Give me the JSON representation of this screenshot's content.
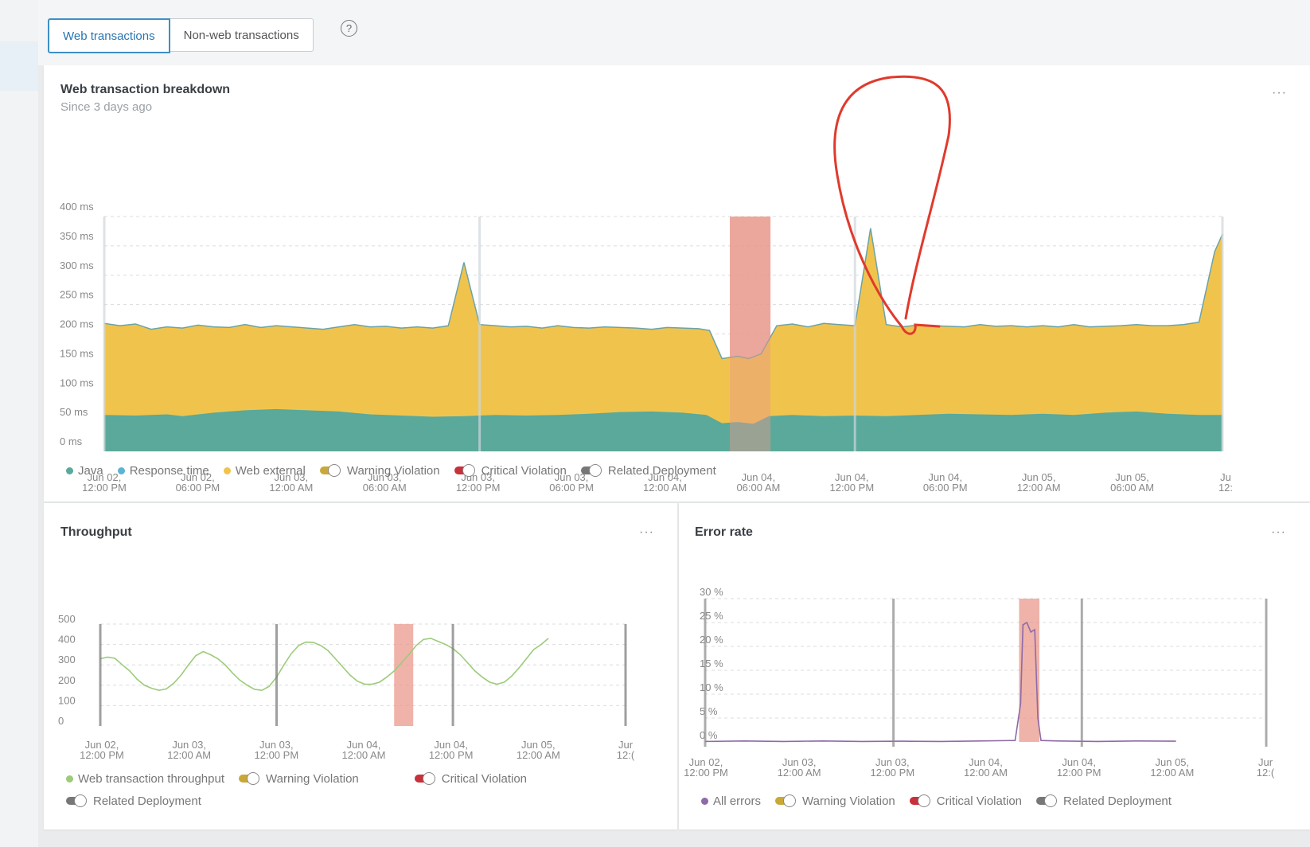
{
  "tabs": {
    "web": "Web transactions",
    "nonweb": "Non-web transactions",
    "help_icon": "question-circle-icon"
  },
  "breakdown": {
    "title": "Web transaction breakdown",
    "subtitle": "Since 3 days ago",
    "more": "···",
    "legend": {
      "java": "Java",
      "response_time": "Response time",
      "web_external": "Web external",
      "warning": "Warning Violation",
      "critical": "Critical Violation",
      "deployment": "Related Deployment"
    }
  },
  "throughput": {
    "title": "Throughput",
    "more": "···",
    "legend": {
      "series": "Web transaction throughput",
      "warning": "Warning Violation",
      "critical": "Critical Violation",
      "deployment": "Related Deployment"
    }
  },
  "error_rate": {
    "title": "Error rate",
    "more": "···",
    "legend": {
      "series": "All errors",
      "warning": "Warning Violation",
      "critical": "Critical Violation",
      "deployment": "Related Deployment"
    }
  },
  "colors": {
    "java": "#5aa99a",
    "web_external": "#f0c44c",
    "response_time": "#5ab4d6",
    "throughput": "#9ccb7a",
    "errors": "#8e6aa8",
    "violation": "#e99a8c",
    "warning": "#c9a838",
    "critical": "#c8303a",
    "deployment": "#777777",
    "annotation": "#e03a2c"
  },
  "chart_data": [
    {
      "type": "area",
      "title": "Web transaction breakdown",
      "ylim": [
        0,
        400
      ],
      "yticks": [
        "0 ms",
        "50 ms",
        "100 ms",
        "150 ms",
        "200 ms",
        "250 ms",
        "300 ms",
        "350 ms",
        "400 ms"
      ],
      "xticks": [
        [
          "Jun 02,",
          "12:00 PM"
        ],
        [
          "Jun 02,",
          "06:00 PM"
        ],
        [
          "Jun 03,",
          "12:00 AM"
        ],
        [
          "Jun 03,",
          "06:00 AM"
        ],
        [
          "Jun 03,",
          "12:00 PM"
        ],
        [
          "Jun 03,",
          "06:00 PM"
        ],
        [
          "Jun 04,",
          "12:00 AM"
        ],
        [
          "Jun 04,",
          "06:00 AM"
        ],
        [
          "Jun 04,",
          "12:00 PM"
        ],
        [
          "Jun 04,",
          "06:00 PM"
        ],
        [
          "Jun 05,",
          "12:00 AM"
        ],
        [
          "Jun 05,",
          "06:00 AM"
        ],
        [
          "Ju",
          "12:"
        ]
      ],
      "x_hours_range": [
        0,
        71.5
      ],
      "series": [
        {
          "name": "Java",
          "values": [
            [
              0,
              62
            ],
            [
              2,
              61
            ],
            [
              4,
              63
            ],
            [
              5,
              60
            ],
            [
              7,
              66
            ],
            [
              9,
              70
            ],
            [
              11,
              72
            ],
            [
              13,
              70
            ],
            [
              15,
              68
            ],
            [
              17,
              63
            ],
            [
              19,
              61
            ],
            [
              21,
              59
            ],
            [
              23,
              60
            ],
            [
              25,
              62
            ],
            [
              27,
              61
            ],
            [
              29,
              62
            ],
            [
              31,
              64
            ],
            [
              33,
              67
            ],
            [
              35,
              68
            ],
            [
              37,
              66
            ],
            [
              38.5,
              62
            ],
            [
              39.5,
              48
            ],
            [
              40.5,
              50
            ],
            [
              41.5,
              47
            ],
            [
              42.5,
              60
            ],
            [
              44,
              62
            ],
            [
              46,
              60
            ],
            [
              48,
              61
            ],
            [
              50,
              60
            ],
            [
              52,
              62
            ],
            [
              54,
              64
            ],
            [
              56,
              63
            ],
            [
              58,
              62
            ],
            [
              60,
              64
            ],
            [
              62,
              62
            ],
            [
              64,
              66
            ],
            [
              66,
              68
            ],
            [
              68,
              64
            ],
            [
              70,
              62
            ],
            [
              71.5,
              62
            ]
          ]
        },
        {
          "name": "Web external",
          "values": [
            [
              0,
              218
            ],
            [
              1,
              214
            ],
            [
              2,
              217
            ],
            [
              3,
              208
            ],
            [
              4,
              212
            ],
            [
              5,
              210
            ],
            [
              6,
              215
            ],
            [
              7,
              212
            ],
            [
              8,
              211
            ],
            [
              9,
              216
            ],
            [
              10,
              211
            ],
            [
              11,
              214
            ],
            [
              12,
              212
            ],
            [
              13,
              210
            ],
            [
              14,
              208
            ],
            [
              15,
              212
            ],
            [
              16,
              216
            ],
            [
              17,
              212
            ],
            [
              18,
              213
            ],
            [
              19,
              210
            ],
            [
              20,
              212
            ],
            [
              21,
              210
            ],
            [
              22,
              214
            ],
            [
              23,
              322
            ],
            [
              24,
              216
            ],
            [
              25,
              214
            ],
            [
              26,
              212
            ],
            [
              27,
              213
            ],
            [
              28,
              210
            ],
            [
              29,
              214
            ],
            [
              30,
              211
            ],
            [
              31,
              210
            ],
            [
              32,
              212
            ],
            [
              33,
              211
            ],
            [
              34,
              210
            ],
            [
              35,
              208
            ],
            [
              36,
              211
            ],
            [
              37,
              210
            ],
            [
              38,
              209
            ],
            [
              38.7,
              206
            ],
            [
              39.5,
              158
            ],
            [
              40.5,
              162
            ],
            [
              41.2,
              158
            ],
            [
              42,
              166
            ],
            [
              43,
              214
            ],
            [
              44,
              217
            ],
            [
              45,
              212
            ],
            [
              46,
              218
            ],
            [
              47,
              216
            ],
            [
              48,
              214
            ],
            [
              49,
              380
            ],
            [
              50,
              216
            ],
            [
              51,
              212
            ],
            [
              52,
              215
            ],
            [
              53,
              214
            ],
            [
              54,
              213
            ],
            [
              55,
              212
            ],
            [
              56,
              216
            ],
            [
              57,
              213
            ],
            [
              58,
              214
            ],
            [
              59,
              212
            ],
            [
              60,
              214
            ],
            [
              61,
              212
            ],
            [
              62,
              216
            ],
            [
              63,
              212
            ],
            [
              64,
              213
            ],
            [
              65,
              214
            ],
            [
              66,
              216
            ],
            [
              67,
              214
            ],
            [
              68,
              214
            ],
            [
              69,
              216
            ],
            [
              70,
              220
            ],
            [
              71,
              340
            ],
            [
              71.5,
              370
            ]
          ]
        }
      ],
      "violation": {
        "start_hour": 40,
        "end_hour": 42.6
      },
      "deployments_hours": [
        0,
        24,
        48,
        71.5
      ]
    },
    {
      "type": "line",
      "title": "Throughput",
      "ylim": [
        0,
        500
      ],
      "yticks": [
        "0",
        "100",
        "200",
        "300",
        "400",
        "500"
      ],
      "xticks": [
        [
          "Jun 02,",
          "12:00 PM"
        ],
        [
          "Jun 03,",
          "12:00 AM"
        ],
        [
          "Jun 03,",
          "12:00 PM"
        ],
        [
          "Jun 04,",
          "12:00 AM"
        ],
        [
          "Jun 04,",
          "12:00 PM"
        ],
        [
          "Jun 05,",
          "12:00 AM"
        ],
        [
          "Jur",
          "12:("
        ]
      ],
      "x_hours_range": [
        0,
        71.5
      ],
      "series": [
        {
          "name": "Web transaction throughput",
          "values": [
            [
              0,
              330
            ],
            [
              1,
              338
            ],
            [
              2,
              332
            ],
            [
              3,
              300
            ],
            [
              4,
              270
            ],
            [
              5,
              230
            ],
            [
              6,
              200
            ],
            [
              7,
              185
            ],
            [
              8,
              175
            ],
            [
              9,
              182
            ],
            [
              10,
              210
            ],
            [
              11,
              250
            ],
            [
              12,
              300
            ],
            [
              13,
              345
            ],
            [
              14,
              365
            ],
            [
              15,
              350
            ],
            [
              16,
              330
            ],
            [
              17,
              300
            ],
            [
              18,
              260
            ],
            [
              19,
              225
            ],
            [
              20,
              200
            ],
            [
              21,
              180
            ],
            [
              22,
              175
            ],
            [
              23,
              195
            ],
            [
              24,
              240
            ],
            [
              25,
              300
            ],
            [
              26,
              355
            ],
            [
              27,
              395
            ],
            [
              28,
              412
            ],
            [
              29,
              410
            ],
            [
              30,
              395
            ],
            [
              31,
              370
            ],
            [
              32,
              330
            ],
            [
              33,
              290
            ],
            [
              34,
              250
            ],
            [
              35,
              220
            ],
            [
              36,
              205
            ],
            [
              37,
              205
            ],
            [
              38,
              215
            ],
            [
              39,
              240
            ],
            [
              40,
              270
            ],
            [
              41,
              310
            ],
            [
              42,
              350
            ],
            [
              43,
              395
            ],
            [
              44,
              425
            ],
            [
              45,
              430
            ],
            [
              46,
              415
            ],
            [
              47,
              400
            ],
            [
              48,
              380
            ],
            [
              49,
              350
            ],
            [
              50,
              310
            ],
            [
              51,
              270
            ],
            [
              52,
              240
            ],
            [
              53,
              215
            ],
            [
              54,
              205
            ],
            [
              55,
              215
            ],
            [
              56,
              245
            ],
            [
              57,
              285
            ],
            [
              58,
              330
            ],
            [
              59,
              375
            ],
            [
              60,
              400
            ],
            [
              61,
              430
            ]
          ]
        }
      ],
      "violation": {
        "start_hour": 40,
        "end_hour": 42.6
      },
      "deployments_hours": [
        0,
        24,
        48,
        71.5
      ]
    },
    {
      "type": "line",
      "title": "Error rate",
      "ylim": [
        0,
        30
      ],
      "yticks": [
        "0 %",
        "5 %",
        "10 %",
        "15 %",
        "20 %",
        "25 %",
        "30 %"
      ],
      "xticks": [
        [
          "Jun 02,",
          "12:00 PM"
        ],
        [
          "Jun 03,",
          "12:00 AM"
        ],
        [
          "Jun 03,",
          "12:00 PM"
        ],
        [
          "Jun 04,",
          "12:00 AM"
        ],
        [
          "Jun 04,",
          "12:00 PM"
        ],
        [
          "Jun 05,",
          "12:00 AM"
        ],
        [
          "Jur",
          "12:("
        ]
      ],
      "x_hours_range": [
        0,
        71.5
      ],
      "series": [
        {
          "name": "All errors",
          "values": [
            [
              0,
              0.1
            ],
            [
              5,
              0.2
            ],
            [
              10,
              0.1
            ],
            [
              15,
              0.2
            ],
            [
              20,
              0.1
            ],
            [
              25,
              0.15
            ],
            [
              30,
              0.1
            ],
            [
              35,
              0.2
            ],
            [
              39.5,
              0.3
            ],
            [
              40.2,
              8
            ],
            [
              40.5,
              24.5
            ],
            [
              41,
              25
            ],
            [
              41.5,
              23
            ],
            [
              42,
              23.5
            ],
            [
              42.4,
              5
            ],
            [
              42.8,
              0.3
            ],
            [
              45,
              0.2
            ],
            [
              50,
              0.1
            ],
            [
              55,
              0.2
            ],
            [
              60,
              0.15
            ]
          ]
        }
      ],
      "violation": {
        "start_hour": 40,
        "end_hour": 42.6
      },
      "deployments_hours": [
        0,
        24,
        48,
        71.5
      ]
    }
  ]
}
